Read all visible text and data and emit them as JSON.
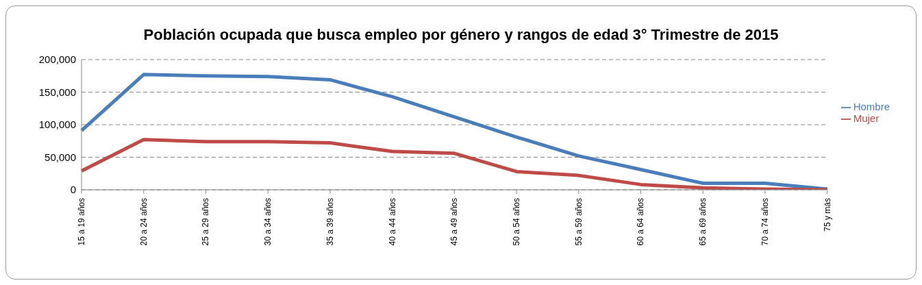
{
  "chart_data": {
    "type": "line",
    "title": "Población ocupada que busca empleo por género y rangos de edad 3° Trimestre de 2015",
    "categories": [
      "15 a 19 años",
      "20 a 24 años",
      "25 a 29 años",
      "30 a 34 años",
      "35 a 39 años",
      "40 a 44 años",
      "45 a 49 años",
      "50 a 54 años",
      "55 a 59 años",
      "60 a 64 años",
      "65 a 69 años",
      "70 a 74 años",
      "75 y más"
    ],
    "series": [
      {
        "name": "Hombre",
        "color": "#4a7ebb",
        "values": [
          91000,
          177000,
          175000,
          174000,
          169000,
          143000,
          112000,
          81000,
          52000,
          31000,
          10000,
          10000,
          1000
        ]
      },
      {
        "name": "Mujer",
        "color": "#be4b48",
        "values": [
          29000,
          77000,
          74000,
          74000,
          72000,
          59000,
          56000,
          28000,
          22000,
          8000,
          3000,
          1000,
          0
        ]
      }
    ],
    "ylim": [
      0,
      200000
    ],
    "yticks": [
      {
        "value": 0,
        "label": "0"
      },
      {
        "value": 50000,
        "label": "50,000"
      },
      {
        "value": 100000,
        "label": "100,000"
      },
      {
        "value": 150000,
        "label": "150,000"
      },
      {
        "value": 200000,
        "label": "200,000"
      }
    ],
    "grid": "y",
    "legend": "right",
    "marker": "none",
    "line_style": "solid"
  }
}
